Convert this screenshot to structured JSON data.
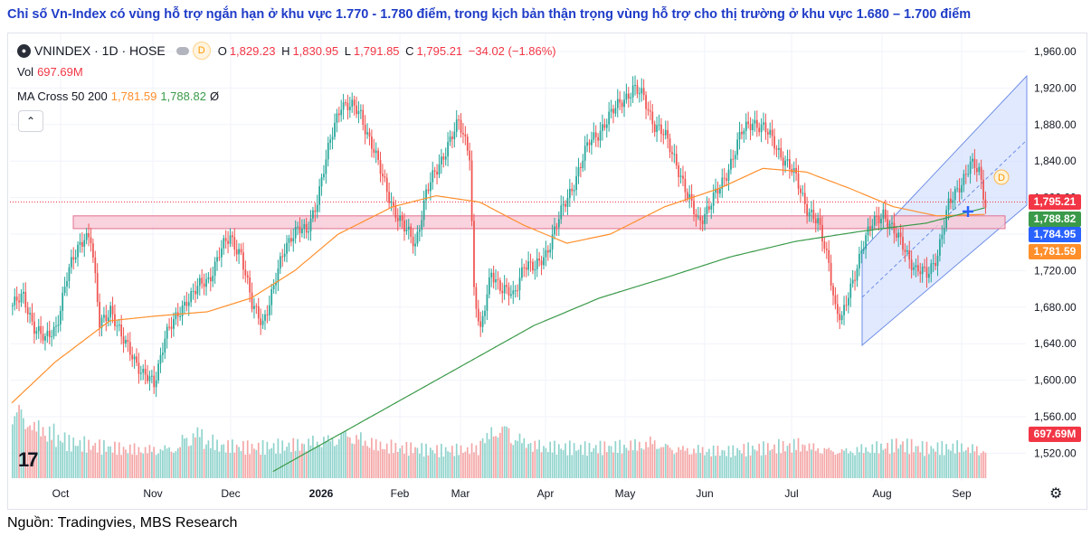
{
  "heading": "Chỉ số Vn-Index có vùng hỗ trợ ngắn hạn ở khu vực 1.770 - 1.780 điểm, trong kịch bản thận trọng vùng hỗ trợ cho thị trường ở khu vực 1.680 – 1.700 điểm",
  "source": "Nguồn: Tradingvies, MBS Research",
  "legend": {
    "symbol": "VNINDEX · 1D · HOSE",
    "badge": "D",
    "o_label": "O",
    "o": "1,829.23",
    "h_label": "H",
    "h": "1,830.95",
    "l_label": "L",
    "l": "1,791.85",
    "c_label": "C",
    "c": "1,795.21",
    "chg": "−34.02 (−1.86%)",
    "vol_label": "Vol",
    "vol": "697.69M",
    "ma_label": "MA Cross 50 200",
    "ma50": "1,781.59",
    "ma200": "1,788.82",
    "ma_extra": "Ø"
  },
  "logo": "17",
  "colors": {
    "up": "#26a69a",
    "down": "#ef5350",
    "ma50": "#ff8f2b",
    "ma200": "#3b9a4a",
    "zone": "#f8c8d6",
    "channel": "#c8d7ff"
  },
  "chart_data": {
    "type": "candlestick",
    "y_ticks": [
      "1,960.00",
      "1,920.00",
      "1,880.00",
      "1,840.00",
      "1,800.00",
      "1,760.00",
      "1,720.00",
      "1,680.00",
      "1,640.00",
      "1,600.00",
      "1,560.00",
      "1,520.00"
    ],
    "x_ticks": [
      "Oct",
      "Nov",
      "Dec",
      "2026",
      "Feb",
      "Mar",
      "Apr",
      "May",
      "Jun",
      "Jul",
      "Aug",
      "Sep"
    ],
    "price_tags": [
      {
        "label": "1,795.21",
        "color": "#f23645"
      },
      {
        "label": "1,788.82",
        "color": "#3b9a4a"
      },
      {
        "label": "1,784.95",
        "color": "#2962ff"
      },
      {
        "label": "1,781.59",
        "color": "#ff8f2b"
      },
      {
        "label": "697.69M",
        "color": "#f23645"
      }
    ],
    "support_zone": [
      1770,
      1780
    ],
    "cautious_support_zone": [
      1680,
      1700
    ],
    "close_path": [
      [
        0,
        1682
      ],
      [
        5,
        1690
      ],
      [
        10,
        1660
      ],
      [
        15,
        1642
      ],
      [
        20,
        1660
      ],
      [
        25,
        1712
      ],
      [
        30,
        1745
      ],
      [
        33,
        1760
      ],
      [
        36,
        1755
      ],
      [
        40,
        1660
      ],
      [
        45,
        1680
      ],
      [
        50,
        1645
      ],
      [
        55,
        1630
      ],
      [
        60,
        1605
      ],
      [
        65,
        1595
      ],
      [
        70,
        1650
      ],
      [
        75,
        1665
      ],
      [
        80,
        1690
      ],
      [
        85,
        1700
      ],
      [
        90,
        1710
      ],
      [
        95,
        1740
      ],
      [
        100,
        1755
      ],
      [
        105,
        1740
      ],
      [
        110,
        1680
      ],
      [
        115,
        1665
      ],
      [
        120,
        1700
      ],
      [
        125,
        1745
      ],
      [
        128,
        1760
      ],
      [
        131,
        1765
      ],
      [
        135,
        1760
      ],
      [
        140,
        1800
      ],
      [
        145,
        1850
      ],
      [
        148,
        1880
      ],
      [
        151,
        1905
      ],
      [
        155,
        1900
      ],
      [
        160,
        1890
      ],
      [
        165,
        1860
      ],
      [
        170,
        1820
      ],
      [
        175,
        1790
      ],
      [
        180,
        1765
      ],
      [
        185,
        1750
      ],
      [
        190,
        1805
      ],
      [
        195,
        1830
      ],
      [
        200,
        1860
      ],
      [
        205,
        1880
      ],
      [
        210,
        1850
      ],
      [
        212,
        1700
      ],
      [
        215,
        1650
      ],
      [
        220,
        1720
      ],
      [
        225,
        1700
      ],
      [
        230,
        1690
      ],
      [
        235,
        1730
      ],
      [
        240,
        1720
      ],
      [
        245,
        1740
      ],
      [
        250,
        1770
      ],
      [
        255,
        1800
      ],
      [
        260,
        1830
      ],
      [
        265,
        1860
      ],
      [
        270,
        1875
      ],
      [
        275,
        1890
      ],
      [
        280,
        1908
      ],
      [
        285,
        1918
      ],
      [
        290,
        1910
      ],
      [
        295,
        1880
      ],
      [
        300,
        1865
      ],
      [
        305,
        1840
      ],
      [
        310,
        1800
      ],
      [
        315,
        1775
      ],
      [
        320,
        1790
      ],
      [
        325,
        1810
      ],
      [
        330,
        1840
      ],
      [
        335,
        1870
      ],
      [
        340,
        1885
      ],
      [
        345,
        1875
      ],
      [
        350,
        1860
      ],
      [
        355,
        1840
      ],
      [
        360,
        1820
      ],
      [
        365,
        1790
      ],
      [
        370,
        1770
      ],
      [
        375,
        1730
      ],
      [
        378,
        1680
      ],
      [
        381,
        1665
      ],
      [
        385,
        1700
      ],
      [
        390,
        1745
      ],
      [
        395,
        1770
      ],
      [
        400,
        1785
      ],
      [
        405,
        1760
      ],
      [
        410,
        1745
      ],
      [
        415,
        1720
      ],
      [
        420,
        1715
      ],
      [
        425,
        1740
      ],
      [
        430,
        1790
      ],
      [
        435,
        1815
      ],
      [
        440,
        1835
      ],
      [
        444,
        1828
      ],
      [
        447,
        1795
      ]
    ],
    "ma50_path": [
      [
        0,
        1575
      ],
      [
        20,
        1620
      ],
      [
        45,
        1665
      ],
      [
        65,
        1670
      ],
      [
        90,
        1675
      ],
      [
        110,
        1690
      ],
      [
        130,
        1720
      ],
      [
        150,
        1760
      ],
      [
        175,
        1790
      ],
      [
        195,
        1802
      ],
      [
        215,
        1795
      ],
      [
        235,
        1770
      ],
      [
        255,
        1750
      ],
      [
        275,
        1760
      ],
      [
        300,
        1790
      ],
      [
        325,
        1810
      ],
      [
        345,
        1832
      ],
      [
        365,
        1828
      ],
      [
        385,
        1810
      ],
      [
        405,
        1790
      ],
      [
        425,
        1780
      ],
      [
        447,
        1781.59
      ]
    ],
    "ma200_path": [
      [
        120,
        1500
      ],
      [
        150,
        1540
      ],
      [
        180,
        1580
      ],
      [
        210,
        1620
      ],
      [
        240,
        1660
      ],
      [
        270,
        1690
      ],
      [
        300,
        1712
      ],
      [
        330,
        1735
      ],
      [
        360,
        1752
      ],
      [
        390,
        1763
      ],
      [
        420,
        1772
      ],
      [
        447,
        1788.82
      ]
    ],
    "volume_profile": [
      0.85,
      0.7,
      0.62,
      0.55,
      0.48,
      0.42,
      0.4,
      0.38,
      0.37,
      0.36,
      0.35,
      0.35,
      0.35,
      0.36,
      0.37,
      0.38,
      0.5,
      0.55,
      0.45,
      0.4,
      0.38,
      0.37,
      0.36,
      0.36,
      0.37,
      0.38,
      0.4,
      0.42,
      0.45,
      0.48,
      0.5,
      0.55,
      0.5,
      0.45,
      0.4,
      0.38,
      0.36,
      0.35,
      0.34,
      0.33,
      0.33,
      0.34,
      0.35,
      0.36,
      0.5,
      0.58,
      0.62,
      0.5,
      0.45,
      0.4,
      0.38,
      0.37,
      0.36,
      0.35,
      0.35,
      0.36,
      0.37,
      0.38,
      0.4,
      0.42,
      0.45,
      0.4,
      0.38,
      0.36,
      0.35,
      0.34,
      0.33,
      0.32,
      0.33,
      0.34,
      0.35,
      0.36,
      0.38,
      0.4,
      0.42,
      0.38,
      0.36,
      0.35,
      0.34,
      0.35,
      0.36,
      0.37,
      0.38,
      0.4,
      0.38,
      0.36,
      0.35,
      0.36,
      0.37,
      0.38,
      0.36,
      0.35
    ]
  }
}
